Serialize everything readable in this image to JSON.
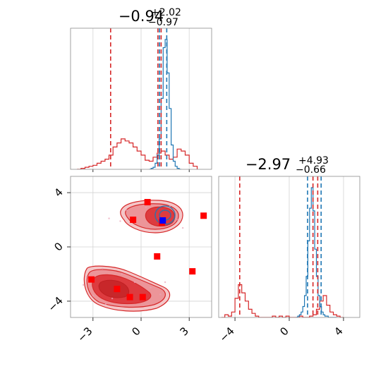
{
  "chart_data": [
    {
      "type": "histogram",
      "panel": "marginal-x",
      "title": {
        "main": "−0.94",
        "sup": "+2.02",
        "sub": "−0.97"
      },
      "xlim": [
        -4.4,
        4.4
      ],
      "grid": true,
      "series": [
        {
          "color": "#d62728",
          "bin_edges": [
            -4.0,
            3.5
          ],
          "bin_step": 0.25,
          "values": [
            0,
            1,
            2,
            3,
            4,
            6,
            8,
            10,
            14,
            22,
            26,
            30,
            28,
            26,
            22,
            18,
            14,
            9,
            8,
            12,
            16,
            18,
            14,
            10,
            12,
            20,
            18,
            14,
            6,
            3
          ]
        },
        {
          "color": "#1f77b4",
          "bin_edges": [
            0.5,
            2.5
          ],
          "bin_step": 0.125,
          "values": [
            0,
            1,
            2,
            6,
            14,
            30,
            70,
            120,
            128,
            95,
            60,
            24,
            8,
            3,
            1,
            0
          ]
        }
      ],
      "vlines": [
        {
          "x": -1.9,
          "color": "#d62728"
        },
        {
          "x": 1.05,
          "color": "#d62728"
        },
        {
          "x": 1.25,
          "color": "#d62728"
        },
        {
          "x": 1.15,
          "color": "#1f77b4"
        },
        {
          "x": 1.6,
          "color": "#1f77b4"
        }
      ]
    },
    {
      "type": "contour",
      "panel": "joint",
      "xlim": [
        -4.4,
        4.4
      ],
      "ylim": [
        -5.2,
        5.2
      ],
      "xticks": [
        -3,
        0,
        3
      ],
      "xtick_labels": [
        "−3",
        "0",
        "3"
      ],
      "yticks": [
        -4,
        0,
        4
      ],
      "ytick_labels": [
        "−4",
        "0",
        "4"
      ],
      "grid": true,
      "points": [
        {
          "x": 0.4,
          "y": 3.3
        },
        {
          "x": -0.5,
          "y": 2.0
        },
        {
          "x": 3.9,
          "y": 2.3
        },
        {
          "x": 1.0,
          "y": -0.7
        },
        {
          "x": 3.2,
          "y": -1.8
        },
        {
          "x": -3.1,
          "y": -2.4
        },
        {
          "x": -1.5,
          "y": -3.1
        },
        {
          "x": -0.7,
          "y": -3.7
        },
        {
          "x": 0.1,
          "y": -3.7
        },
        {
          "x": 1.3,
          "y": 1.8
        }
      ],
      "marker_color": "#ff0000",
      "truth": {
        "x": 1.35,
        "y": 1.95,
        "color": "#0000ff"
      }
    },
    {
      "type": "histogram",
      "panel": "marginal-y",
      "title": {
        "main": "−2.97",
        "sup": "+4.93",
        "sub": "−0.66"
      },
      "xlim": [
        -5.2,
        5.2
      ],
      "xticks": [
        -4,
        0,
        4
      ],
      "xtick_labels": [
        "−4",
        "0",
        "4"
      ],
      "grid": true,
      "series": [
        {
          "color": "#d62728",
          "bin_edges": [
            -5.0,
            4.0
          ],
          "bin_step": 0.25,
          "values": [
            0,
            2,
            1,
            4,
            14,
            24,
            18,
            12,
            6,
            3,
            1,
            0,
            0,
            0,
            0,
            1,
            0,
            1,
            0,
            1,
            0,
            0,
            0,
            1,
            0,
            0,
            1,
            2,
            6,
            12,
            16,
            9,
            4,
            2,
            1,
            0
          ]
        },
        {
          "color": "#1f77b4",
          "bin_edges": [
            0.5,
            3.5
          ],
          "bin_step": 0.125,
          "values": [
            0,
            1,
            2,
            4,
            8,
            16,
            30,
            56,
            80,
            95,
            78,
            50,
            30,
            16,
            8,
            4,
            2,
            1,
            1,
            0,
            0,
            0,
            0,
            0
          ]
        }
      ],
      "vlines": [
        {
          "x": -3.65,
          "color": "#d62728"
        },
        {
          "x": 1.75,
          "color": "#d62728"
        },
        {
          "x": 2.1,
          "color": "#d62728"
        },
        {
          "x": 1.35,
          "color": "#1f77b4"
        },
        {
          "x": 2.35,
          "color": "#1f77b4"
        }
      ]
    }
  ]
}
